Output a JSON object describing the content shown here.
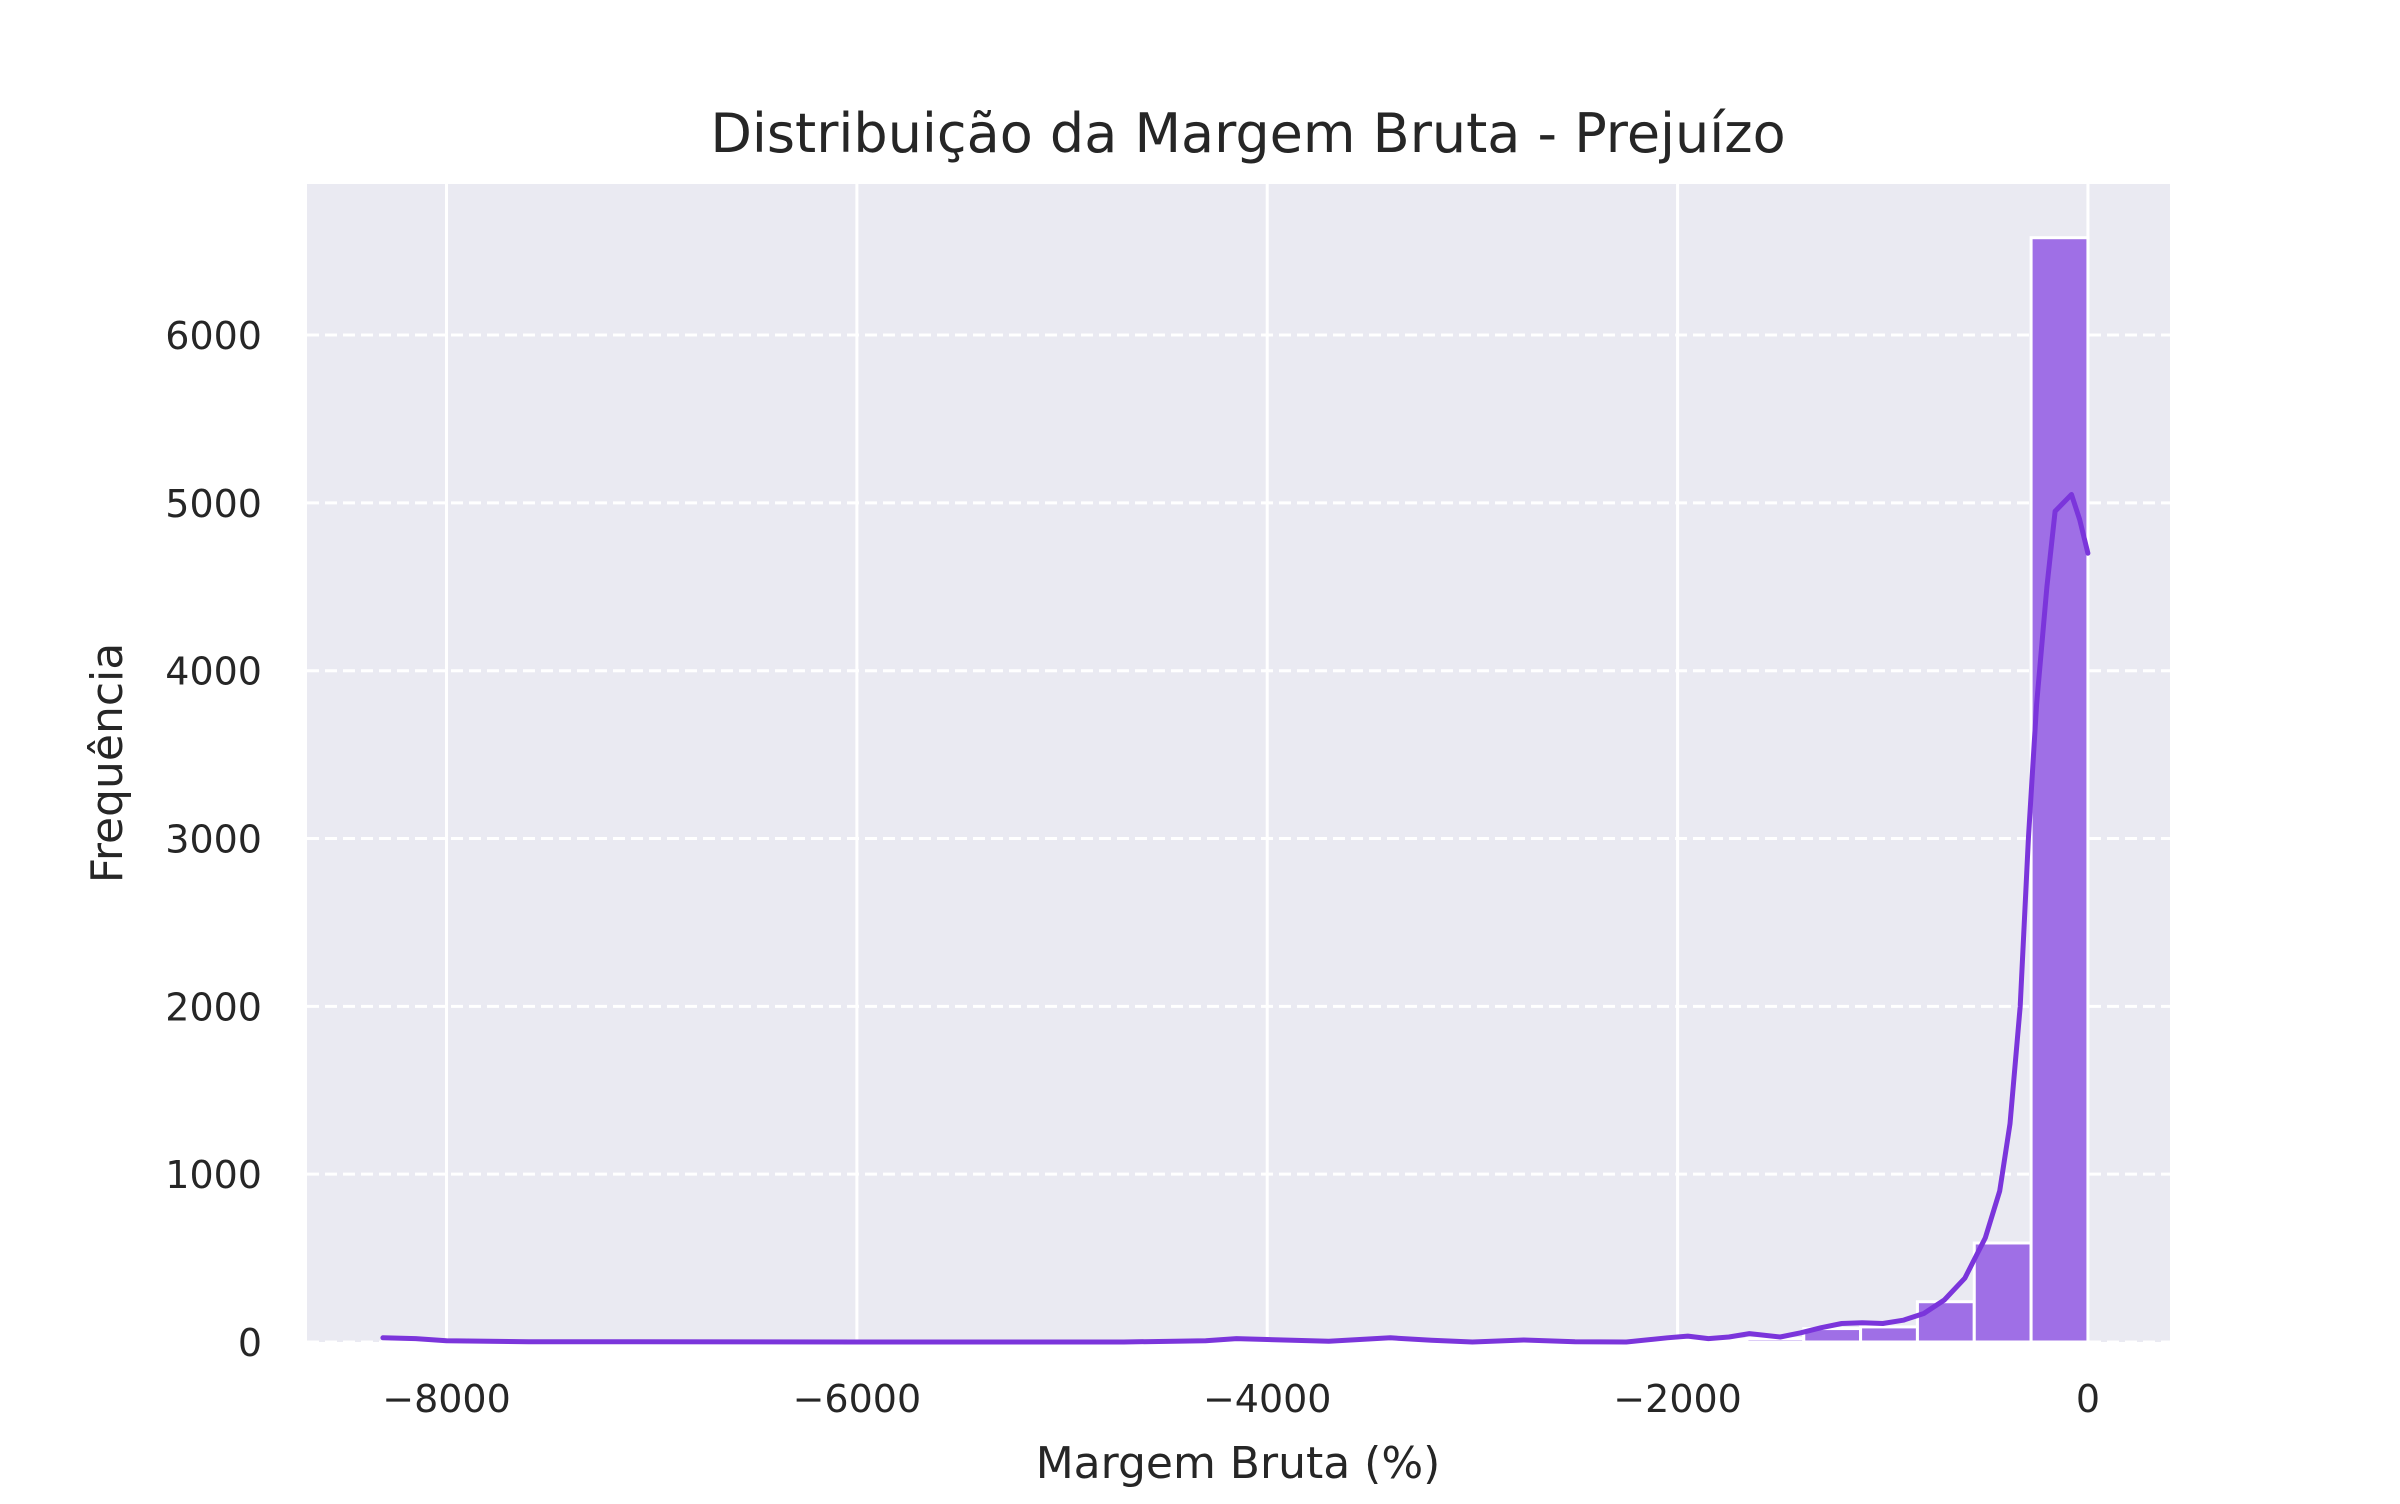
{
  "chart_data": {
    "type": "bar",
    "title": "Distribuição da Margem Bruta - Prejuízo",
    "xlabel": "Margem Bruta (%)",
    "ylabel": "Frequência",
    "xlim": [
      -8680,
      400
    ],
    "ylim": [
      0,
      6900
    ],
    "x_ticks": [
      -8000,
      -6000,
      -4000,
      -2000,
      0
    ],
    "x_tick_labels": [
      "−8000",
      "−6000",
      "−4000",
      "−2000",
      "0"
    ],
    "y_ticks": [
      0,
      1000,
      2000,
      3000,
      4000,
      5000,
      6000
    ],
    "y_tick_labels": [
      "0",
      "1000",
      "2000",
      "3000",
      "4000",
      "5000",
      "6000"
    ],
    "grid": true,
    "histogram": {
      "bin_edges": [
        -8310,
        -8033,
        -7756,
        -7479,
        -7202,
        -6925,
        -6648,
        -6371,
        -6094,
        -5817,
        -5540,
        -5263,
        -4986,
        -4709,
        -4432,
        -4155,
        -3878,
        -3601,
        -3324,
        -3047,
        -2770,
        -2493,
        -2216,
        -1939,
        -1662,
        -1385,
        -1108,
        -831,
        -554,
        -277,
        0
      ],
      "counts": [
        15,
        0,
        0,
        0,
        0,
        0,
        0,
        0,
        0,
        0,
        0,
        0,
        0,
        0,
        0,
        8,
        5,
        6,
        6,
        4,
        4,
        6,
        10,
        14,
        20,
        80,
        90,
        240,
        590,
        6580
      ]
    },
    "kde": {
      "x": [
        -8310,
        -8150,
        -8000,
        -7600,
        -6000,
        -4700,
        -4300,
        -4150,
        -4000,
        -3700,
        -3550,
        -3400,
        -3200,
        -3000,
        -2750,
        -2500,
        -2250,
        -2050,
        -1950,
        -1850,
        -1750,
        -1650,
        -1500,
        -1400,
        -1300,
        -1200,
        -1100,
        -1000,
        -900,
        -800,
        -700,
        -600,
        -500,
        -430,
        -380,
        -330,
        -290,
        -250,
        -200,
        -160,
        -120,
        -80,
        -40,
        0
      ],
      "y": [
        25,
        20,
        8,
        2,
        0,
        0,
        8,
        20,
        15,
        5,
        15,
        25,
        10,
        0,
        12,
        2,
        0,
        25,
        35,
        20,
        30,
        50,
        30,
        55,
        85,
        110,
        115,
        110,
        130,
        170,
        250,
        380,
        620,
        900,
        1300,
        2000,
        3000,
        3800,
        4500,
        4950,
        5000,
        5050,
        4900,
        4700
      ]
    },
    "colors": {
      "bar_fill": "#9f6fe6",
      "bar_edge": "#ffffff",
      "kde_line": "#7b35db",
      "plot_background": "#eaeaf2",
      "grid": "#ffffff"
    }
  }
}
